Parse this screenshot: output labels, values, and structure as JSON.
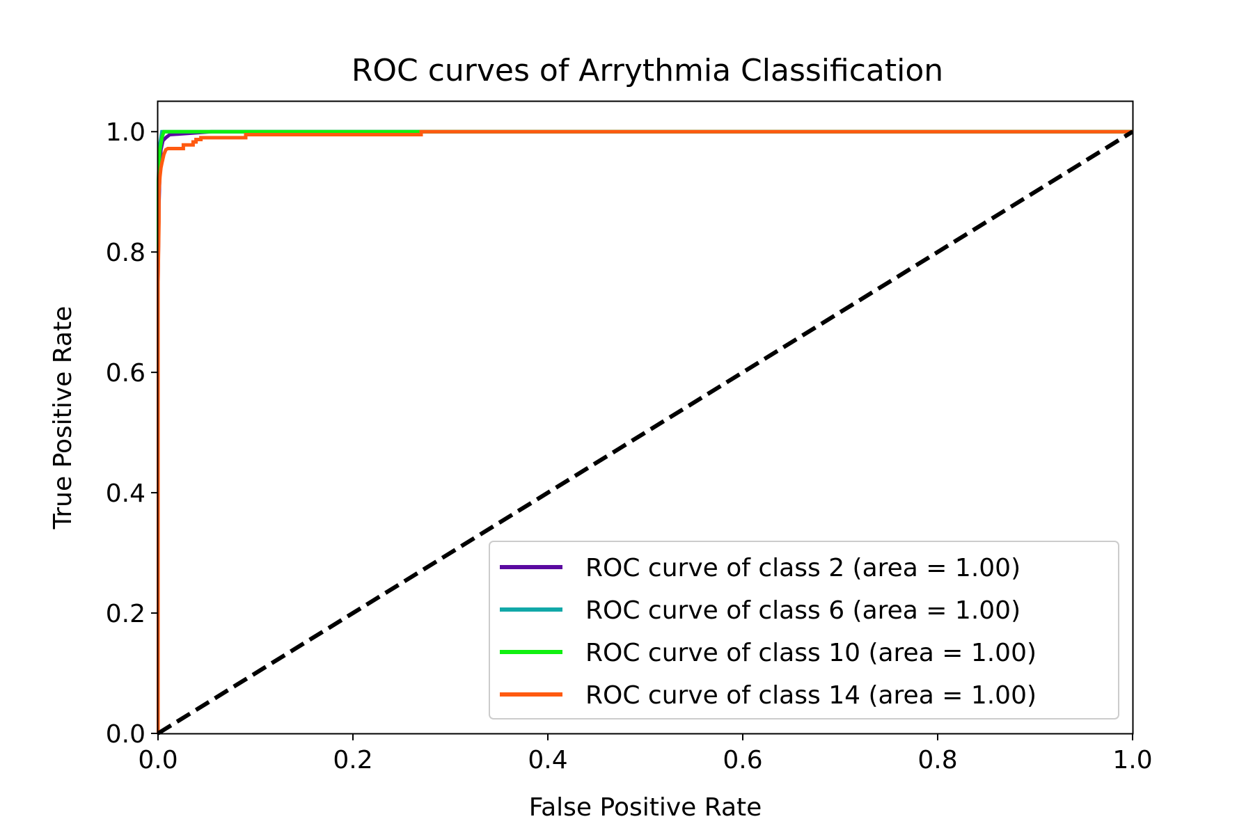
{
  "chart_data": {
    "type": "line",
    "title": "ROC curves of Arrythmia Classification",
    "xlabel": "False Positive Rate",
    "ylabel": "True Positive Rate",
    "xlim": [
      0.0,
      1.0
    ],
    "ylim": [
      0.0,
      1.05
    ],
    "xticks": [
      0.0,
      0.2,
      0.4,
      0.6,
      0.8,
      1.0
    ],
    "xtick_labels": [
      "0.0",
      "0.2",
      "0.4",
      "0.6",
      "0.8",
      "1.0"
    ],
    "yticks": [
      0.0,
      0.2,
      0.4,
      0.6,
      0.8,
      1.0
    ],
    "ytick_labels": [
      "0.0",
      "0.2",
      "0.4",
      "0.6",
      "0.8",
      "1.0"
    ],
    "grid": false,
    "legend_position": "lower right",
    "series": [
      {
        "name": "ROC curve of class 2 (area = 1.00)",
        "color": "#5a0aa0",
        "x": [
          0.0,
          0.0,
          0.001,
          0.002,
          0.003,
          0.005,
          0.008,
          0.012,
          0.055,
          1.0
        ],
        "y": [
          0.0,
          0.75,
          0.88,
          0.94,
          0.97,
          0.985,
          0.99,
          0.995,
          1.0,
          1.0
        ]
      },
      {
        "name": "ROC curve of class 6 (area = 1.00)",
        "color": "#12a8a8",
        "x": [
          0.0,
          0.0,
          0.001,
          0.002,
          0.004,
          1.0
        ],
        "y": [
          0.0,
          0.85,
          0.95,
          0.98,
          1.0,
          1.0
        ]
      },
      {
        "name": "ROC curve of class 10 (area = 1.00)",
        "color": "#10f010",
        "x": [
          0.0,
          0.0,
          0.001,
          0.002,
          0.004,
          0.006,
          0.27,
          1.0
        ],
        "y": [
          0.0,
          0.9,
          0.95,
          0.97,
          0.99,
          1.0,
          1.0,
          1.0
        ]
      },
      {
        "name": "ROC curve of class 14 (area = 1.00)",
        "color": "#ff5a10",
        "x": [
          0.0,
          0.0,
          0.001,
          0.001,
          0.002,
          0.003,
          0.004,
          0.005,
          0.006,
          0.008,
          0.01,
          0.026,
          0.026,
          0.036,
          0.036,
          0.039,
          0.039,
          0.044,
          0.044,
          0.06,
          0.09,
          0.09,
          0.27,
          0.27,
          1.0
        ],
        "y": [
          0.0,
          0.75,
          0.85,
          0.9,
          0.925,
          0.94,
          0.948,
          0.955,
          0.962,
          0.97,
          0.972,
          0.972,
          0.978,
          0.978,
          0.983,
          0.983,
          0.987,
          0.987,
          0.99,
          0.99,
          0.99,
          0.995,
          0.995,
          1.0,
          1.0
        ]
      }
    ],
    "reference_line": {
      "x": [
        0.0,
        1.0
      ],
      "y": [
        0.0,
        1.0
      ],
      "style": "dashed",
      "color": "#000000"
    }
  }
}
